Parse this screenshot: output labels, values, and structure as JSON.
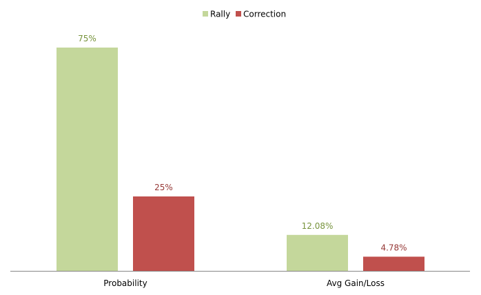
{
  "chart_data": {
    "type": "bar",
    "categories": [
      "Probability",
      "Avg Gain/Loss"
    ],
    "series": [
      {
        "name": "Rally",
        "color": "#c4d79b",
        "label_color": "#77933c",
        "values": [
          75,
          12.08
        ],
        "labels": [
          "75%",
          "12.08%"
        ]
      },
      {
        "name": "Correction",
        "color": "#c0504d",
        "label_color": "#953735",
        "values": [
          25,
          4.78
        ],
        "labels": [
          "25%",
          "4.78%"
        ]
      }
    ],
    "title": "",
    "xlabel": "",
    "ylabel": "",
    "unit": "%",
    "ylim": [
      0,
      75
    ],
    "grid": false,
    "legend_position": "top",
    "axis_color": "#868686"
  }
}
